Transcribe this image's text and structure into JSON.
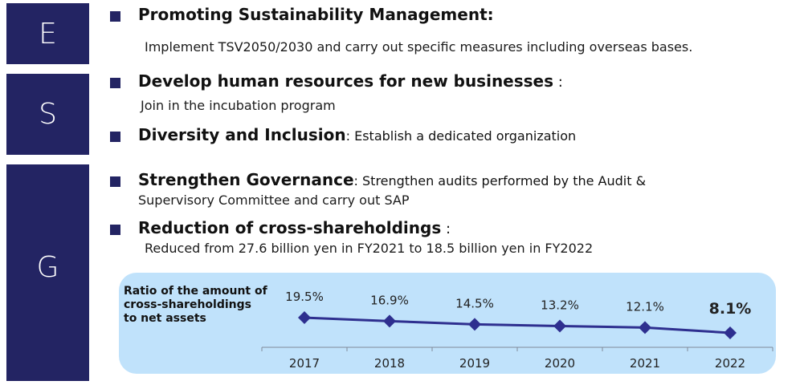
{
  "sections": {
    "e": {
      "letter": "E",
      "items": [
        {
          "title": "Promoting Sustainability Management:",
          "inline": "",
          "detail": "Implement TSV2050/2030 and carry out specific measures including overseas bases."
        }
      ]
    },
    "s": {
      "letter": "S",
      "items": [
        {
          "title": "Develop human resources for new businesses",
          "inline": " :",
          "detail": "Join in the incubation program"
        },
        {
          "title": "Diversity and Inclusion",
          "inline": ":  Establish a dedicated organization",
          "detail": ""
        }
      ]
    },
    "g": {
      "letter": "G",
      "items": [
        {
          "title": "Strengthen Governance",
          "inline": ":  Strengthen audits performed by the Audit &",
          "detail": "Supervisory Committee and carry out SAP"
        },
        {
          "title": "Reduction of cross-shareholdings",
          "inline": " :",
          "detail": "Reduced from 27.6 billion yen in FY2021 to 18.5 billion yen in FY2022"
        }
      ]
    }
  },
  "colors": {
    "brand_navy": "#232463",
    "chart_bg": "#c0e2fb",
    "series_line": "#2e2f8f"
  },
  "chart_data": {
    "type": "line",
    "title": "Ratio of the amount of cross-shareholdings to net assets",
    "title_lines": [
      "Ratio of the amount of",
      "cross-shareholdings",
      "to net assets"
    ],
    "categories": [
      "2017",
      "2018",
      "2019",
      "2020",
      "2021",
      "2022"
    ],
    "series": [
      {
        "name": "Ratio of cross-shareholdings to net assets (%)",
        "values": [
          19.5,
          16.9,
          14.5,
          13.2,
          12.1,
          8.1
        ]
      }
    ],
    "data_labels": [
      "19.5%",
      "16.9%",
      "14.5%",
      "13.2%",
      "12.1%",
      "8.1%"
    ],
    "highlighted_label_index": 5,
    "xlabel": "",
    "ylabel": "",
    "ylim": [
      0,
      100
    ],
    "grid": false,
    "legend": "none"
  }
}
